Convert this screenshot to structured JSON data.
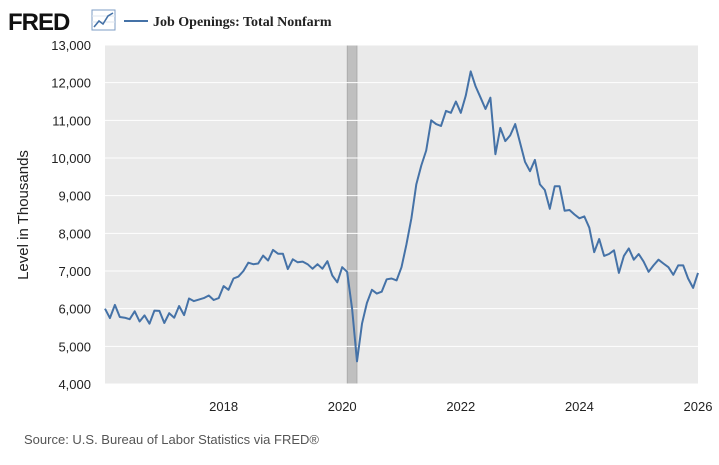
{
  "header": {
    "logo_text": "FRED",
    "logo_icon": "trend-line-icon"
  },
  "footer": {
    "source": "Source: U.S. Bureau of Labor Statistics via FRED®"
  },
  "colors": {
    "series": "#4572a7",
    "plot_background": "#eaeaea",
    "recession_shading": "#bfbfbf",
    "grid": "#ffffff"
  },
  "chart_data": {
    "type": "line",
    "title": "",
    "xlabel": "",
    "ylabel": "Level in Thousands",
    "xlim": [
      2016.0,
      2026.0
    ],
    "ylim": [
      4000,
      13000
    ],
    "y_ticks": [
      4000,
      5000,
      6000,
      7000,
      8000,
      9000,
      10000,
      11000,
      12000,
      13000
    ],
    "y_tick_labels": [
      "4,000",
      "5,000",
      "6,000",
      "7,000",
      "8,000",
      "9,000",
      "10,000",
      "11,000",
      "12,000",
      "13,000"
    ],
    "x_ticks": [
      2018,
      2020,
      2022,
      2024,
      2026
    ],
    "x_tick_labels": [
      "2018",
      "2020",
      "2022",
      "2024",
      "2026"
    ],
    "grid": "horizontal",
    "legend_position": "top",
    "recessions": [
      {
        "start": "2020-02",
        "end": "2020-04"
      }
    ],
    "series": [
      {
        "name": "Job Openings: Total Nonfarm",
        "points": [
          [
            "2016-01",
            6000
          ],
          [
            "2016-02",
            5750
          ],
          [
            "2016-03",
            6100
          ],
          [
            "2016-04",
            5780
          ],
          [
            "2016-05",
            5760
          ],
          [
            "2016-06",
            5720
          ],
          [
            "2016-07",
            5930
          ],
          [
            "2016-08",
            5660
          ],
          [
            "2016-09",
            5820
          ],
          [
            "2016-10",
            5600
          ],
          [
            "2016-11",
            5950
          ],
          [
            "2016-12",
            5940
          ],
          [
            "2017-01",
            5620
          ],
          [
            "2017-02",
            5880
          ],
          [
            "2017-03",
            5760
          ],
          [
            "2017-04",
            6070
          ],
          [
            "2017-05",
            5830
          ],
          [
            "2017-06",
            6270
          ],
          [
            "2017-07",
            6200
          ],
          [
            "2017-08",
            6240
          ],
          [
            "2017-09",
            6280
          ],
          [
            "2017-10",
            6350
          ],
          [
            "2017-11",
            6230
          ],
          [
            "2017-12",
            6280
          ],
          [
            "2018-01",
            6600
          ],
          [
            "2018-02",
            6500
          ],
          [
            "2018-03",
            6800
          ],
          [
            "2018-04",
            6850
          ],
          [
            "2018-05",
            7000
          ],
          [
            "2018-06",
            7220
          ],
          [
            "2018-07",
            7180
          ],
          [
            "2018-08",
            7200
          ],
          [
            "2018-09",
            7410
          ],
          [
            "2018-10",
            7280
          ],
          [
            "2018-11",
            7560
          ],
          [
            "2018-12",
            7460
          ],
          [
            "2019-01",
            7460
          ],
          [
            "2019-02",
            7050
          ],
          [
            "2019-03",
            7310
          ],
          [
            "2019-04",
            7230
          ],
          [
            "2019-05",
            7250
          ],
          [
            "2019-06",
            7180
          ],
          [
            "2019-07",
            7060
          ],
          [
            "2019-08",
            7180
          ],
          [
            "2019-09",
            7060
          ],
          [
            "2019-10",
            7260
          ],
          [
            "2019-11",
            6880
          ],
          [
            "2019-12",
            6700
          ],
          [
            "2020-01",
            7100
          ],
          [
            "2020-02",
            6980
          ],
          [
            "2020-03",
            6000
          ],
          [
            "2020-04",
            4600
          ],
          [
            "2020-05",
            5600
          ],
          [
            "2020-06",
            6150
          ],
          [
            "2020-07",
            6500
          ],
          [
            "2020-08",
            6400
          ],
          [
            "2020-09",
            6450
          ],
          [
            "2020-10",
            6780
          ],
          [
            "2020-11",
            6800
          ],
          [
            "2020-12",
            6750
          ],
          [
            "2021-01",
            7100
          ],
          [
            "2021-02",
            7700
          ],
          [
            "2021-03",
            8400
          ],
          [
            "2021-04",
            9300
          ],
          [
            "2021-05",
            9800
          ],
          [
            "2021-06",
            10200
          ],
          [
            "2021-07",
            11000
          ],
          [
            "2021-08",
            10900
          ],
          [
            "2021-09",
            10850
          ],
          [
            "2021-10",
            11250
          ],
          [
            "2021-11",
            11200
          ],
          [
            "2021-12",
            11500
          ],
          [
            "2022-01",
            11200
          ],
          [
            "2022-02",
            11650
          ],
          [
            "2022-03",
            12300
          ],
          [
            "2022-04",
            11900
          ],
          [
            "2022-05",
            11600
          ],
          [
            "2022-06",
            11300
          ],
          [
            "2022-07",
            11600
          ],
          [
            "2022-08",
            10100
          ],
          [
            "2022-09",
            10800
          ],
          [
            "2022-10",
            10450
          ],
          [
            "2022-11",
            10600
          ],
          [
            "2022-12",
            10900
          ],
          [
            "2023-01",
            10400
          ],
          [
            "2023-02",
            9900
          ],
          [
            "2023-03",
            9650
          ],
          [
            "2023-04",
            9950
          ],
          [
            "2023-05",
            9300
          ],
          [
            "2023-06",
            9150
          ],
          [
            "2023-07",
            8650
          ],
          [
            "2023-08",
            9250
          ],
          [
            "2023-09",
            9250
          ],
          [
            "2023-10",
            8600
          ],
          [
            "2023-11",
            8620
          ],
          [
            "2023-12",
            8500
          ],
          [
            "2024-01",
            8400
          ],
          [
            "2024-02",
            8450
          ],
          [
            "2024-03",
            8150
          ],
          [
            "2024-04",
            7500
          ],
          [
            "2024-05",
            7850
          ],
          [
            "2024-06",
            7400
          ],
          [
            "2024-07",
            7450
          ],
          [
            "2024-08",
            7550
          ],
          [
            "2024-09",
            6950
          ],
          [
            "2024-10",
            7400
          ],
          [
            "2024-11",
            7600
          ],
          [
            "2024-12",
            7300
          ],
          [
            "2025-01",
            7450
          ],
          [
            "2025-02",
            7250
          ],
          [
            "2025-03",
            6980
          ],
          [
            "2025-04",
            7150
          ],
          [
            "2025-05",
            7300
          ],
          [
            "2025-06",
            7200
          ],
          [
            "2025-07",
            7100
          ],
          [
            "2025-08",
            6900
          ],
          [
            "2025-09",
            7150
          ],
          [
            "2025-10",
            7150
          ],
          [
            "2025-11",
            6800
          ],
          [
            "2025-12",
            6550
          ],
          [
            "2026-01",
            6950
          ]
        ]
      }
    ]
  }
}
